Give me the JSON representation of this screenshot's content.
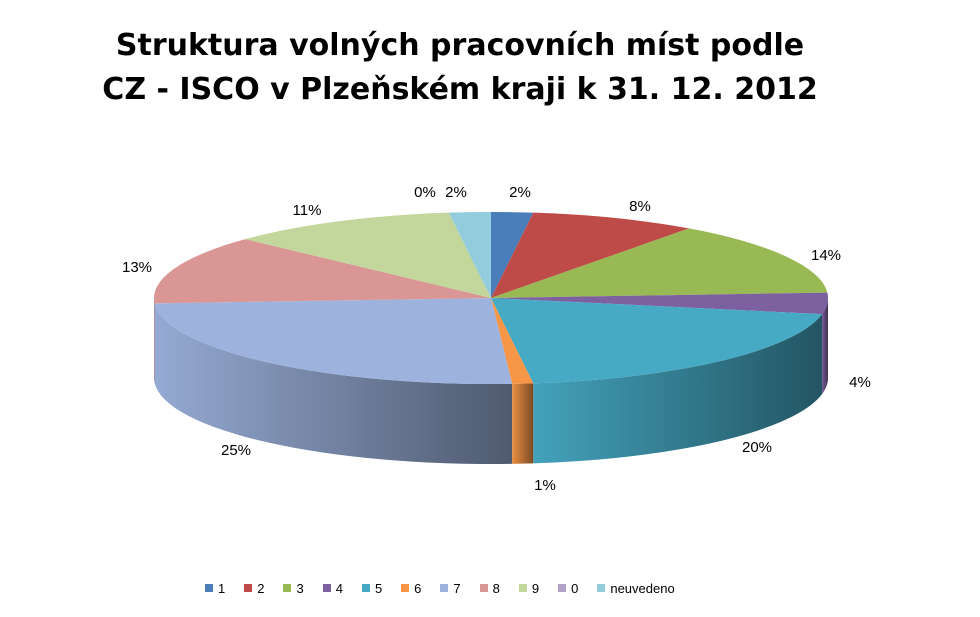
{
  "chart_data": {
    "type": "pie",
    "style": "3d",
    "title": {
      "line1": "Struktura volných pracovních míst podle",
      "line2": "CZ - ISCO v Plzeňském kraji k 31. 12. 2012"
    },
    "legend_position": "bottom",
    "slices": [
      {
        "category": "1",
        "value": 2,
        "label": "2%",
        "color": "#4A7EBB"
      },
      {
        "category": "2",
        "value": 8,
        "label": "8%",
        "color": "#BE4B48"
      },
      {
        "category": "3",
        "value": 14,
        "label": "14%",
        "color": "#98B954"
      },
      {
        "category": "4",
        "value": 4,
        "label": "4%",
        "color": "#7D60A0"
      },
      {
        "category": "5",
        "value": 20,
        "label": "20%",
        "color": "#46AAC5"
      },
      {
        "category": "6",
        "value": 1,
        "label": "1%",
        "color": "#F69646"
      },
      {
        "category": "7",
        "value": 25,
        "label": "25%",
        "color": "#9DB3DE"
      },
      {
        "category": "8",
        "value": 13,
        "label": "13%",
        "color": "#D99694"
      },
      {
        "category": "9",
        "value": 11,
        "label": "11%",
        "color": "#C3D69B"
      },
      {
        "category": "0",
        "value": 0,
        "label": "0%",
        "color": "#B3A2C7"
      },
      {
        "category": "neuvedeno",
        "value": 2,
        "label": "2%",
        "color": "#93CDDD"
      }
    ]
  }
}
